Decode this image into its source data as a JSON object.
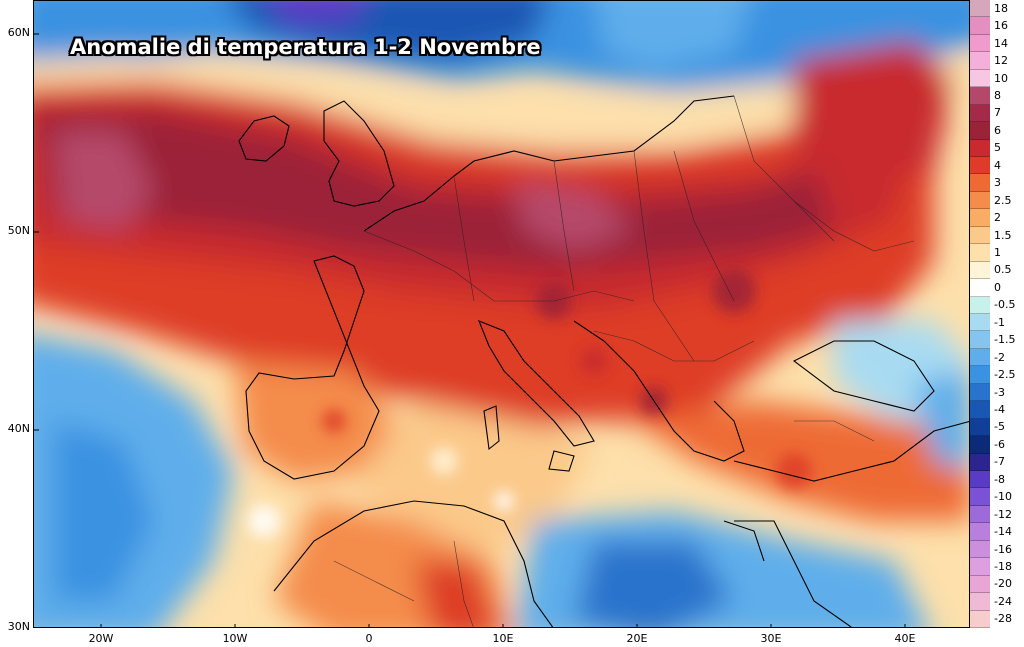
{
  "title": "Anomalie di temperatura 1-2 Novembre",
  "latitude_labels": [
    "60N",
    "50N",
    "40N",
    "30N"
  ],
  "longitude_labels": [
    "20W",
    "10W",
    "0",
    "10E",
    "20E",
    "30E",
    "40E"
  ],
  "legend": {
    "labels": [
      "18",
      "16",
      "14",
      "12",
      "10",
      "8",
      "7",
      "6",
      "5",
      "4",
      "3",
      "2.5",
      "2",
      "1.5",
      "1",
      "0.5",
      "0",
      "-0.5",
      "-1",
      "-1.5",
      "-2",
      "-2.5",
      "-3",
      "-4",
      "-5",
      "-6",
      "-7",
      "-8",
      "-10",
      "-12",
      "-14",
      "-16",
      "-18",
      "-20",
      "-24",
      "-28"
    ],
    "colors": [
      "#d6a6bd",
      "#e48fc0",
      "#ef9ccc",
      "#f5b0d9",
      "#f7c6e2",
      "#b5486a",
      "#a52a4a",
      "#9b2337",
      "#c82a2f",
      "#de3c28",
      "#ee6a34",
      "#f48c4c",
      "#f8ac64",
      "#fbc98a",
      "#fde0ab",
      "#fff4d8",
      "#ffffff",
      "#c9f1ec",
      "#a8dbf2",
      "#84c4ef",
      "#5eaeeb",
      "#3b92e1",
      "#2a73cc",
      "#1a56b4",
      "#103e98",
      "#0b2a7a",
      "#2c2590",
      "#5a3bc4",
      "#7a52d6",
      "#9c6ad9",
      "#b87fdc",
      "#cc8fdd",
      "#dd9fdf",
      "#e8a6d4",
      "#f0b9d6",
      "#f7cccc"
    ]
  },
  "colors": {
    "warm_max": "#9b2337",
    "warm": "#de3c28",
    "mild": "#fbc98a",
    "neutral": "#ffffff",
    "cool": "#84c4ef",
    "cold": "#1a56b4",
    "very_cold": "#5a3bc4"
  }
}
